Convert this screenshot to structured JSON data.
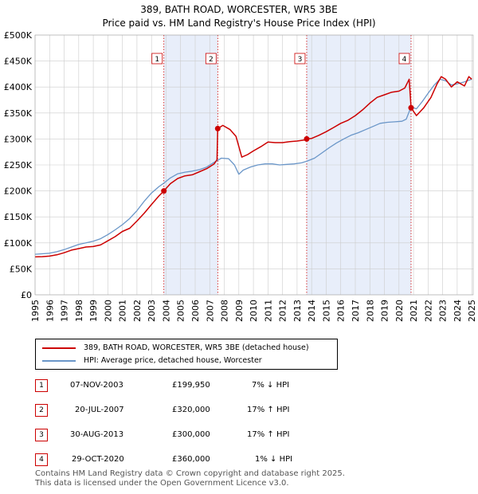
{
  "title_line1": "389, BATH ROAD, WORCESTER, WR5 3BE",
  "title_line2": "Price paid vs. HM Land Registry's House Price Index (HPI)",
  "colors": {
    "price": "#cc0000",
    "hpi": "#6a96c8",
    "band": "#e8eefa",
    "grid": "#cccccc"
  },
  "legend": {
    "price_label": "389, BATH ROAD, WORCESTER, WR5 3BE (detached house)",
    "hpi_label": "HPI: Average price, detached house, Worcester"
  },
  "sales": [
    {
      "num": "1",
      "date": "07-NOV-2003",
      "price": "£199,950",
      "hpi": "7% ↓ HPI"
    },
    {
      "num": "2",
      "date": "20-JUL-2007",
      "price": "£320,000",
      "hpi": "17% ↑ HPI"
    },
    {
      "num": "3",
      "date": "30-AUG-2013",
      "price": "£300,000",
      "hpi": "17% ↑ HPI"
    },
    {
      "num": "4",
      "date": "29-OCT-2020",
      "price": "£360,000",
      "hpi": "1% ↓ HPI"
    }
  ],
  "footer_line1": "Contains HM Land Registry data © Crown copyright and database right 2025.",
  "footer_line2": "This data is licensed under the Open Government Licence v3.0.",
  "chart_data": {
    "type": "line",
    "title": "389, BATH ROAD, WORCESTER, WR5 3BE — Price paid vs. HM Land Registry's House Price Index (HPI)",
    "xlim": [
      1995,
      2025.1
    ],
    "ylim": [
      0,
      500000
    ],
    "y_ticks": [
      0,
      50000,
      100000,
      150000,
      200000,
      250000,
      300000,
      350000,
      400000,
      450000,
      500000
    ],
    "y_tick_labels": [
      "£0",
      "£50K",
      "£100K",
      "£150K",
      "£200K",
      "£250K",
      "£300K",
      "£350K",
      "£400K",
      "£450K",
      "£500K"
    ],
    "x_ticks": [
      1995,
      1996,
      1997,
      1998,
      1999,
      2000,
      2001,
      2002,
      2003,
      2004,
      2005,
      2006,
      2007,
      2008,
      2009,
      2010,
      2011,
      2012,
      2013,
      2014,
      2015,
      2016,
      2017,
      2018,
      2019,
      2020,
      2021,
      2022,
      2023,
      2024,
      2025
    ],
    "x_tick_labels": [
      "1995",
      "1996",
      "1997",
      "1998",
      "1999",
      "2000",
      "2001",
      "2002",
      "2003",
      "2004",
      "2005",
      "2006",
      "2007",
      "2008",
      "2009",
      "2010",
      "2011",
      "2012",
      "2013",
      "2014",
      "2015",
      "2016",
      "2017",
      "2018",
      "2019",
      "2020",
      "2021",
      "2022",
      "2023",
      "2024",
      "2025"
    ],
    "grid": true,
    "shaded_periods": [
      [
        2003.85,
        2007.55
      ],
      [
        2013.66,
        2020.83
      ]
    ],
    "sale_markers": [
      {
        "label": "1",
        "x": 2003.85,
        "y": 199950
      },
      {
        "label": "2",
        "x": 2007.55,
        "y": 320000
      },
      {
        "label": "3",
        "x": 2013.66,
        "y": 300000
      },
      {
        "label": "4",
        "x": 2020.83,
        "y": 360000
      }
    ],
    "series": [
      {
        "name": "389, BATH ROAD, WORCESTER, WR5 3BE (detached house)",
        "color": "#cc0000",
        "x": [
          1995.0,
          1995.5,
          1996.0,
          1996.5,
          1997.0,
          1997.5,
          1998.0,
          1998.5,
          1999.0,
          1999.5,
          2000.0,
          2000.5,
          2001.0,
          2001.5,
          2002.0,
          2002.5,
          2003.0,
          2003.5,
          2003.85,
          2004.3,
          2004.8,
          2005.3,
          2005.8,
          2006.3,
          2006.8,
          2007.3,
          2007.5,
          2007.55,
          2007.9,
          2008.4,
          2008.8,
          2009.2,
          2009.6,
          2010.0,
          2010.5,
          2011.0,
          2011.5,
          2012.0,
          2012.5,
          2013.0,
          2013.5,
          2013.66,
          2014.0,
          2014.5,
          2015.0,
          2015.5,
          2016.0,
          2016.5,
          2017.0,
          2017.5,
          2018.0,
          2018.5,
          2019.0,
          2019.5,
          2020.0,
          2020.4,
          2020.7,
          2020.83,
          2021.2,
          2021.7,
          2022.2,
          2022.6,
          2022.9,
          2023.2,
          2023.6,
          2024.0,
          2024.5,
          2024.8,
          2025.0
        ],
        "y": [
          73000,
          73500,
          74500,
          77000,
          81000,
          86000,
          89000,
          92000,
          93000,
          96000,
          104000,
          112000,
          122000,
          128000,
          142000,
          157000,
          174000,
          190000,
          199950,
          214000,
          224000,
          229000,
          231000,
          237000,
          243000,
          252000,
          260000,
          320000,
          326000,
          318000,
          305000,
          265000,
          270000,
          277000,
          285000,
          294000,
          293000,
          293000,
          295000,
          296000,
          298000,
          300000,
          301000,
          307000,
          314000,
          322000,
          330000,
          336000,
          345000,
          356000,
          369000,
          380000,
          385000,
          390000,
          392000,
          398000,
          415000,
          360000,
          345000,
          360000,
          380000,
          405000,
          420000,
          415000,
          400000,
          410000,
          402000,
          420000,
          415000
        ]
      },
      {
        "name": "HPI: Average price, detached house, Worcester",
        "color": "#6a96c8",
        "x": [
          1995.0,
          1995.5,
          1996.0,
          1996.5,
          1997.0,
          1997.5,
          1998.0,
          1998.5,
          1999.0,
          1999.5,
          2000.0,
          2000.5,
          2001.0,
          2001.5,
          2002.0,
          2002.5,
          2003.0,
          2003.5,
          2003.85,
          2004.3,
          2004.8,
          2005.3,
          2005.8,
          2006.3,
          2006.8,
          2007.3,
          2007.8,
          2008.3,
          2008.7,
          2009.0,
          2009.3,
          2009.8,
          2010.3,
          2010.8,
          2011.3,
          2011.8,
          2012.3,
          2012.8,
          2013.3,
          2013.66,
          2014.2,
          2014.7,
          2015.2,
          2015.7,
          2016.2,
          2016.7,
          2017.2,
          2017.7,
          2018.2,
          2018.7,
          2019.2,
          2019.7,
          2020.2,
          2020.5,
          2020.83,
          2021.2,
          2021.6,
          2022.0,
          2022.4,
          2022.8,
          2023.2,
          2023.6,
          2024.0,
          2024.5,
          2025.0
        ],
        "y": [
          78000,
          79000,
          80000,
          83000,
          87000,
          92000,
          97000,
          100000,
          103000,
          108000,
          116000,
          125000,
          135000,
          147000,
          162000,
          180000,
          196000,
          208000,
          215000,
          225000,
          233000,
          236000,
          238000,
          241000,
          246000,
          255000,
          263000,
          262000,
          250000,
          232000,
          240000,
          246000,
          250000,
          252000,
          252000,
          250000,
          251000,
          252000,
          254000,
          257000,
          263000,
          273000,
          283000,
          292000,
          300000,
          307000,
          312000,
          318000,
          324000,
          330000,
          332000,
          333000,
          334000,
          338000,
          362000,
          358000,
          372000,
          388000,
          403000,
          415000,
          412000,
          404000,
          406000,
          410000,
          415000
        ]
      }
    ]
  }
}
